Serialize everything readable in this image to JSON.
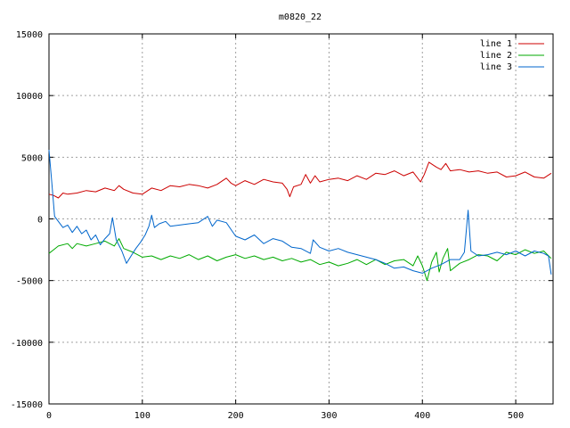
{
  "chart_data": {
    "type": "line",
    "title": "m0820_22",
    "xlim": [
      0,
      540
    ],
    "ylim": [
      -15000,
      15000
    ],
    "x_ticks": [
      0,
      100,
      200,
      300,
      400,
      500
    ],
    "y_ticks": [
      -15000,
      -10000,
      -5000,
      0,
      5000,
      10000,
      15000
    ],
    "grid": true,
    "legend_position": "top-right",
    "series": [
      {
        "name": "line 1",
        "color": "#cc0000",
        "points": [
          [
            0,
            2000
          ],
          [
            5,
            1900
          ],
          [
            10,
            1700
          ],
          [
            15,
            2100
          ],
          [
            20,
            2000
          ],
          [
            30,
            2100
          ],
          [
            40,
            2300
          ],
          [
            50,
            2200
          ],
          [
            60,
            2500
          ],
          [
            70,
            2300
          ],
          [
            75,
            2700
          ],
          [
            80,
            2400
          ],
          [
            90,
            2100
          ],
          [
            100,
            2000
          ],
          [
            110,
            2500
          ],
          [
            120,
            2300
          ],
          [
            130,
            2700
          ],
          [
            140,
            2600
          ],
          [
            150,
            2800
          ],
          [
            160,
            2700
          ],
          [
            170,
            2500
          ],
          [
            180,
            2800
          ],
          [
            190,
            3300
          ],
          [
            195,
            2900
          ],
          [
            200,
            2700
          ],
          [
            210,
            3100
          ],
          [
            220,
            2800
          ],
          [
            230,
            3200
          ],
          [
            240,
            3000
          ],
          [
            250,
            2900
          ],
          [
            255,
            2400
          ],
          [
            258,
            1800
          ],
          [
            262,
            2600
          ],
          [
            270,
            2800
          ],
          [
            275,
            3600
          ],
          [
            280,
            2900
          ],
          [
            285,
            3500
          ],
          [
            290,
            3000
          ],
          [
            300,
            3200
          ],
          [
            310,
            3300
          ],
          [
            320,
            3100
          ],
          [
            330,
            3500
          ],
          [
            340,
            3200
          ],
          [
            350,
            3700
          ],
          [
            360,
            3600
          ],
          [
            370,
            3900
          ],
          [
            380,
            3500
          ],
          [
            390,
            3800
          ],
          [
            398,
            3000
          ],
          [
            402,
            3600
          ],
          [
            407,
            4600
          ],
          [
            415,
            4200
          ],
          [
            420,
            4000
          ],
          [
            425,
            4500
          ],
          [
            430,
            3900
          ],
          [
            440,
            4000
          ],
          [
            450,
            3800
          ],
          [
            460,
            3900
          ],
          [
            470,
            3700
          ],
          [
            480,
            3800
          ],
          [
            490,
            3400
          ],
          [
            500,
            3500
          ],
          [
            510,
            3800
          ],
          [
            520,
            3400
          ],
          [
            530,
            3300
          ],
          [
            538,
            3700
          ]
        ]
      },
      {
        "name": "line 2",
        "color": "#00aa00",
        "points": [
          [
            0,
            -2800
          ],
          [
            5,
            -2500
          ],
          [
            10,
            -2200
          ],
          [
            20,
            -2000
          ],
          [
            25,
            -2400
          ],
          [
            30,
            -2000
          ],
          [
            40,
            -2200
          ],
          [
            50,
            -2000
          ],
          [
            60,
            -1800
          ],
          [
            70,
            -2200
          ],
          [
            75,
            -1600
          ],
          [
            80,
            -2400
          ],
          [
            90,
            -2700
          ],
          [
            100,
            -3100
          ],
          [
            110,
            -3000
          ],
          [
            120,
            -3300
          ],
          [
            130,
            -3000
          ],
          [
            140,
            -3200
          ],
          [
            150,
            -2900
          ],
          [
            160,
            -3300
          ],
          [
            170,
            -3000
          ],
          [
            180,
            -3400
          ],
          [
            190,
            -3100
          ],
          [
            200,
            -2900
          ],
          [
            210,
            -3200
          ],
          [
            220,
            -3000
          ],
          [
            230,
            -3300
          ],
          [
            240,
            -3100
          ],
          [
            250,
            -3400
          ],
          [
            260,
            -3200
          ],
          [
            270,
            -3500
          ],
          [
            280,
            -3300
          ],
          [
            290,
            -3700
          ],
          [
            300,
            -3500
          ],
          [
            310,
            -3800
          ],
          [
            320,
            -3600
          ],
          [
            330,
            -3300
          ],
          [
            340,
            -3700
          ],
          [
            350,
            -3300
          ],
          [
            360,
            -3700
          ],
          [
            370,
            -3400
          ],
          [
            380,
            -3300
          ],
          [
            390,
            -3800
          ],
          [
            395,
            -3000
          ],
          [
            400,
            -3800
          ],
          [
            405,
            -5000
          ],
          [
            410,
            -3500
          ],
          [
            415,
            -2700
          ],
          [
            418,
            -4300
          ],
          [
            422,
            -3200
          ],
          [
            427,
            -2400
          ],
          [
            430,
            -4200
          ],
          [
            440,
            -3600
          ],
          [
            450,
            -3300
          ],
          [
            460,
            -2900
          ],
          [
            470,
            -3000
          ],
          [
            480,
            -3400
          ],
          [
            490,
            -2700
          ],
          [
            500,
            -2900
          ],
          [
            510,
            -2500
          ],
          [
            520,
            -2800
          ],
          [
            530,
            -2600
          ],
          [
            538,
            -3200
          ]
        ]
      },
      {
        "name": "line 3",
        "color": "#0066cc",
        "points": [
          [
            0,
            5600
          ],
          [
            3,
            3000
          ],
          [
            6,
            200
          ],
          [
            10,
            -200
          ],
          [
            15,
            -700
          ],
          [
            20,
            -500
          ],
          [
            25,
            -1100
          ],
          [
            30,
            -600
          ],
          [
            35,
            -1200
          ],
          [
            40,
            -900
          ],
          [
            45,
            -1700
          ],
          [
            50,
            -1300
          ],
          [
            55,
            -2100
          ],
          [
            60,
            -1600
          ],
          [
            65,
            -1200
          ],
          [
            68,
            100
          ],
          [
            72,
            -1700
          ],
          [
            78,
            -2600
          ],
          [
            83,
            -3600
          ],
          [
            88,
            -3000
          ],
          [
            93,
            -2400
          ],
          [
            98,
            -1900
          ],
          [
            103,
            -1300
          ],
          [
            107,
            -600
          ],
          [
            110,
            300
          ],
          [
            113,
            -700
          ],
          [
            118,
            -400
          ],
          [
            125,
            -200
          ],
          [
            130,
            -600
          ],
          [
            140,
            -500
          ],
          [
            150,
            -400
          ],
          [
            160,
            -300
          ],
          [
            170,
            200
          ],
          [
            175,
            -600
          ],
          [
            180,
            -100
          ],
          [
            190,
            -300
          ],
          [
            200,
            -1400
          ],
          [
            210,
            -1700
          ],
          [
            220,
            -1300
          ],
          [
            230,
            -2000
          ],
          [
            240,
            -1600
          ],
          [
            250,
            -1800
          ],
          [
            260,
            -2300
          ],
          [
            270,
            -2400
          ],
          [
            280,
            -2800
          ],
          [
            283,
            -1700
          ],
          [
            290,
            -2300
          ],
          [
            300,
            -2600
          ],
          [
            310,
            -2400
          ],
          [
            320,
            -2700
          ],
          [
            330,
            -2900
          ],
          [
            340,
            -3100
          ],
          [
            350,
            -3300
          ],
          [
            360,
            -3600
          ],
          [
            370,
            -4000
          ],
          [
            380,
            -3900
          ],
          [
            390,
            -4200
          ],
          [
            400,
            -4400
          ],
          [
            410,
            -4000
          ],
          [
            420,
            -3700
          ],
          [
            430,
            -3300
          ],
          [
            440,
            -3300
          ],
          [
            445,
            -2700
          ],
          [
            449,
            700
          ],
          [
            452,
            -2600
          ],
          [
            460,
            -3000
          ],
          [
            470,
            -2900
          ],
          [
            480,
            -2700
          ],
          [
            490,
            -2900
          ],
          [
            500,
            -2600
          ],
          [
            510,
            -3000
          ],
          [
            520,
            -2600
          ],
          [
            530,
            -2800
          ],
          [
            535,
            -3000
          ],
          [
            538,
            -4500
          ]
        ]
      }
    ]
  }
}
